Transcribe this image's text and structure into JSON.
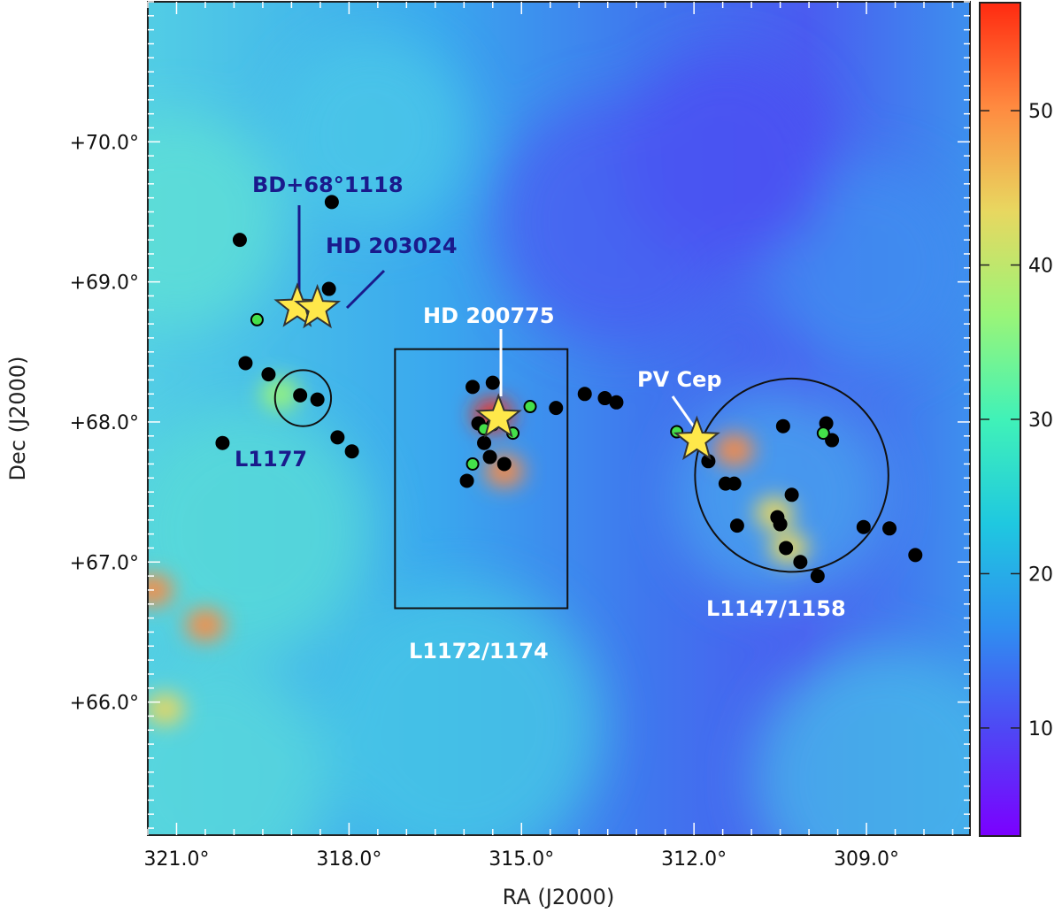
{
  "chart_data": {
    "type": "map",
    "xlabel": "RA (J2000)",
    "ylabel": "Dec (J2000)",
    "xlim": [
      321.5,
      307.2
    ],
    "ylim": [
      65.05,
      71.0
    ],
    "x_ticks": [
      "321.0°",
      "318.0°",
      "315.0°",
      "312.0°",
      "309.0°"
    ],
    "x_tick_values": [
      321.0,
      318.0,
      315.0,
      312.0,
      309.0
    ],
    "y_ticks": [
      "+66.0°",
      "+67.0°",
      "+68.0°",
      "+69.0°",
      "+70.0°"
    ],
    "y_tick_values": [
      66.0,
      67.0,
      68.0,
      69.0,
      70.0
    ],
    "colorbar": {
      "range": [
        3,
        57
      ],
      "ticks": [
        "10",
        "20",
        "30",
        "40",
        "50"
      ],
      "tick_values": [
        10,
        20,
        30,
        40,
        50
      ],
      "colormap": "rainbow",
      "colors": [
        "#7b00ff",
        "#4f46f5",
        "#2f8ff0",
        "#1fc8e0",
        "#40f2b8",
        "#9af578",
        "#e8d760",
        "#ff8a40",
        "#ff2a10"
      ]
    },
    "regions": [
      {
        "shape": "rectangle",
        "label": "L1172/1174",
        "ra_range": [
          317.2,
          314.2
        ],
        "dec_range": [
          66.67,
          68.52
        ]
      },
      {
        "shape": "circle",
        "label": "L1147/1158",
        "ra": 310.3,
        "dec": 67.62,
        "radius_deg": 0.69
      },
      {
        "shape": "circle",
        "label": "L1177",
        "ra": 318.8,
        "dec": 68.17,
        "radius_deg": 0.2
      }
    ],
    "stars": [
      {
        "label": "BD+68°1118",
        "ra": 318.9,
        "dec": 68.82
      },
      {
        "label": "HD 203024",
        "ra": 318.55,
        "dec": 68.81
      },
      {
        "label": "HD 200775",
        "ra": 315.4,
        "dec": 68.03
      },
      {
        "label": "PV Cep",
        "ra": 311.95,
        "dec": 67.87
      }
    ],
    "black_points": [
      [
        318.3,
        69.57
      ],
      [
        319.9,
        69.3
      ],
      [
        318.35,
        68.95
      ],
      [
        319.8,
        68.42
      ],
      [
        319.4,
        68.34
      ],
      [
        318.85,
        68.19
      ],
      [
        318.55,
        68.16
      ],
      [
        320.2,
        67.85
      ],
      [
        318.2,
        67.89
      ],
      [
        317.95,
        67.79
      ],
      [
        315.85,
        68.25
      ],
      [
        315.5,
        68.28
      ],
      [
        315.75,
        67.99
      ],
      [
        315.65,
        67.85
      ],
      [
        315.55,
        67.75
      ],
      [
        315.3,
        67.7
      ],
      [
        315.95,
        67.58
      ],
      [
        314.4,
        68.1
      ],
      [
        313.9,
        68.2
      ],
      [
        313.55,
        68.17
      ],
      [
        313.35,
        68.14
      ],
      [
        311.75,
        67.72
      ],
      [
        311.45,
        67.56
      ],
      [
        311.3,
        67.56
      ],
      [
        311.25,
        67.26
      ],
      [
        310.55,
        67.32
      ],
      [
        310.5,
        67.27
      ],
      [
        310.4,
        67.1
      ],
      [
        310.3,
        67.48
      ],
      [
        310.15,
        67.0
      ],
      [
        309.85,
        66.9
      ],
      [
        309.7,
        67.99
      ],
      [
        309.6,
        67.87
      ],
      [
        310.45,
        67.97
      ],
      [
        309.05,
        67.25
      ],
      [
        308.6,
        67.24
      ],
      [
        308.15,
        67.05
      ]
    ],
    "green_points": [
      [
        319.6,
        68.73
      ],
      [
        315.5,
        67.98
      ],
      [
        315.15,
        67.92
      ],
      [
        314.85,
        68.11
      ],
      [
        315.65,
        67.95
      ],
      [
        315.85,
        67.7
      ],
      [
        312.3,
        67.93
      ],
      [
        309.75,
        67.92
      ]
    ],
    "hotspots": [
      {
        "ra": 315.5,
        "dec": 68.05,
        "value": 55
      },
      {
        "ra": 315.3,
        "dec": 67.65,
        "value": 52
      },
      {
        "ra": 311.3,
        "dec": 67.8,
        "value": 48
      },
      {
        "ra": 310.6,
        "dec": 67.35,
        "value": 46
      },
      {
        "ra": 310.35,
        "dec": 67.1,
        "value": 44
      },
      {
        "ra": 321.4,
        "dec": 66.8,
        "value": 52
      },
      {
        "ra": 320.5,
        "dec": 66.55,
        "value": 48
      },
      {
        "ra": 321.2,
        "dec": 65.95,
        "value": 46
      },
      {
        "ra": 319.2,
        "dec": 68.2,
        "value": 38
      }
    ],
    "annotations": [
      {
        "id": "bd",
        "text": "BD+68°1118",
        "color": "#1a1a8c"
      },
      {
        "id": "hd203",
        "text": "HD 203024",
        "color": "#1a1a8c"
      },
      {
        "id": "hd200",
        "text": "HD 200775",
        "color": "#ffffff"
      },
      {
        "id": "pvcep",
        "text": "PV Cep",
        "color": "#ffffff"
      },
      {
        "id": "l1177",
        "text": "L1177",
        "color": "#1a1a8c"
      },
      {
        "id": "l1172",
        "text": "L1172/1174",
        "color": "#ffffff"
      },
      {
        "id": "l1147",
        "text": "L1147/1158",
        "color": "#ffffff"
      }
    ]
  }
}
